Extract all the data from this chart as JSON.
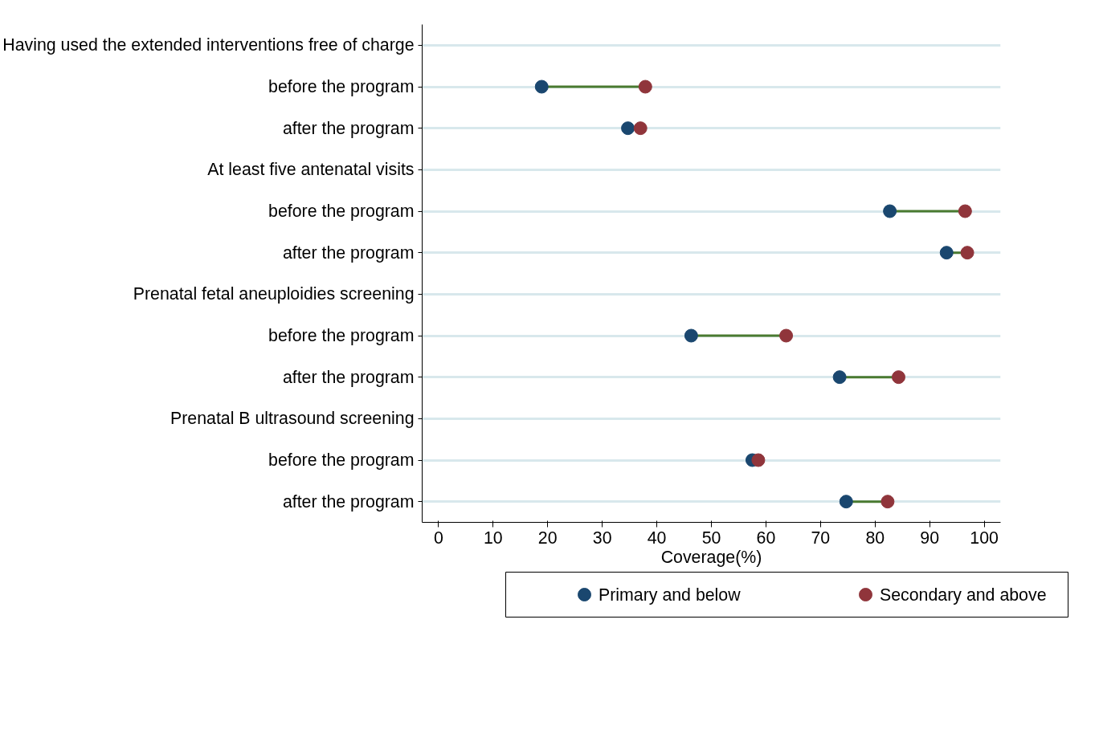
{
  "chart_data": {
    "type": "scatter",
    "orientation": "horizontal",
    "xlabel": "Coverage(%)",
    "categories": [
      "Having used the extended interventions free of charge",
      "before the program",
      "after the program",
      "At least five antenatal visits",
      "before the program",
      "after the program",
      "Prenatal fetal aneuploidies screening",
      "before the program",
      "after the program",
      "Prenatal B ultrasound screening",
      "before the program",
      "after the program"
    ],
    "series": [
      {
        "name": "Primary and below",
        "color": "#1a476f",
        "values": [
          null,
          18.9,
          34.7,
          null,
          82.7,
          93.1,
          null,
          46.3,
          73.5,
          null,
          57.5,
          74.7
        ]
      },
      {
        "name": "Secondary and above",
        "color": "#90353b",
        "values": [
          null,
          37.9,
          37.0,
          null,
          96.5,
          96.9,
          null,
          63.7,
          84.3,
          null,
          58.6,
          82.3
        ]
      }
    ],
    "xlim": [
      -3,
      103
    ],
    "xticks": [
      0,
      10,
      20,
      30,
      40,
      50,
      60,
      70,
      80,
      90,
      100
    ],
    "grid": "y",
    "legend": "bottom",
    "marker": "circle"
  }
}
